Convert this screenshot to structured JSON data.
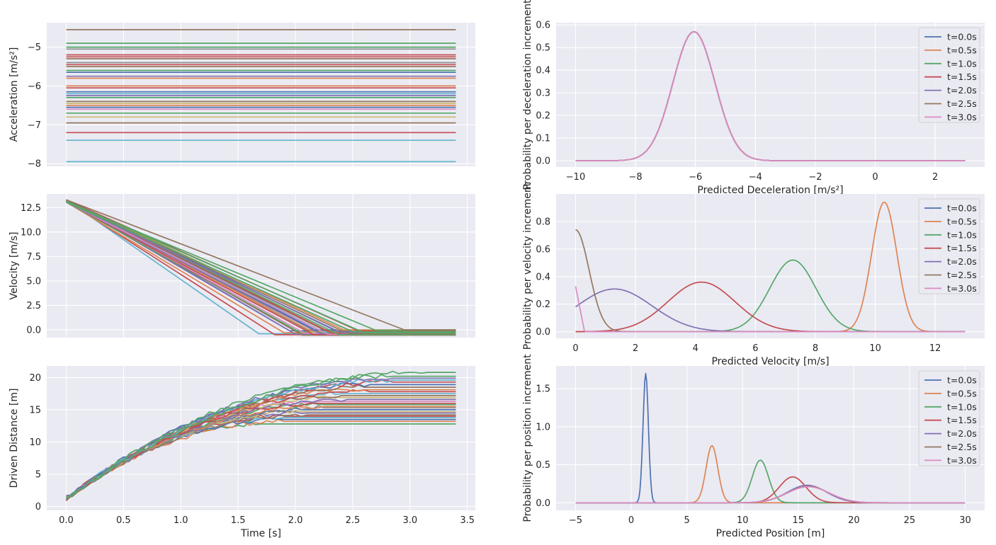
{
  "colors": {
    "background": "#eaeaf2",
    "grid": "#ffffff",
    "palette": [
      "#4c72b0",
      "#dd8452",
      "#55a868",
      "#c44e52",
      "#8172b3",
      "#937860",
      "#da8bc3",
      "#8c8c8c",
      "#ccb974",
      "#64b5cd"
    ]
  },
  "chart_data": [
    {
      "id": "acc",
      "type": "line",
      "title": "",
      "xlabel": "",
      "ylabel": "Acceleration [m/s²]",
      "xlim": [
        -0.17,
        3.57
      ],
      "ylim": [
        -8.07,
        -4.37
      ],
      "xticks": [],
      "yticks": [
        -8,
        -7,
        -6,
        -5
      ],
      "ytick_labels": [
        "−8",
        "−7",
        "−6",
        "−5"
      ],
      "xgrid": [
        0,
        0.5,
        1,
        1.5,
        2,
        2.5,
        3,
        3.5
      ],
      "t_end": 3.4,
      "levels": [
        -4.55,
        -4.9,
        -5.0,
        -5.05,
        -5.2,
        -5.25,
        -5.3,
        -5.4,
        -5.45,
        -5.5,
        -5.6,
        -5.65,
        -5.75,
        -5.8,
        -6.0,
        -6.05,
        -6.15,
        -6.2,
        -6.25,
        -6.3,
        -6.4,
        -6.45,
        -6.5,
        -6.55,
        -6.6,
        -6.7,
        -6.8,
        -6.95,
        -7.2,
        -7.4,
        -7.95
      ],
      "level_colors": [
        5,
        2,
        2,
        7,
        3,
        3,
        5,
        7,
        3,
        5,
        2,
        0,
        4,
        1,
        1,
        3,
        0,
        9,
        4,
        2,
        5,
        8,
        1,
        0,
        6,
        2,
        8,
        5,
        3,
        9,
        9
      ]
    },
    {
      "id": "vel",
      "type": "line",
      "xlabel": "",
      "ylabel": "Velocity [m/s]",
      "xlim": [
        -0.17,
        3.57
      ],
      "ylim": [
        -0.8,
        13.9
      ],
      "xticks": [],
      "yticks": [
        0,
        2.5,
        5,
        7.5,
        10,
        12.5
      ],
      "ytick_labels": [
        "0.0",
        "2.5",
        "5.0",
        "7.5",
        "10.0",
        "12.5"
      ],
      "xgrid": [
        0,
        0.5,
        1,
        1.5,
        2,
        2.5,
        3,
        3.5
      ],
      "t_end": 3.4,
      "v0": 13.3,
      "stop_times": [
        1.68,
        1.82,
        1.9,
        1.95,
        2.0,
        2.03,
        2.06,
        2.08,
        2.1,
        2.12,
        2.14,
        2.16,
        2.18,
        2.2,
        2.22,
        2.24,
        2.26,
        2.28,
        2.3,
        2.32,
        2.34,
        2.36,
        2.38,
        2.4,
        2.43,
        2.46,
        2.5,
        2.55,
        2.6,
        2.7,
        2.95
      ],
      "stop_levels": [
        -0.4,
        -0.5,
        -0.3,
        -0.1,
        -0.45,
        -0.2,
        -0.55,
        -0.35,
        0.0,
        -0.25,
        -0.15,
        -0.5,
        -0.05,
        -0.3,
        -0.4,
        -0.2,
        -0.1,
        -0.45,
        -0.25,
        -0.35,
        0.0,
        -0.15,
        -0.5,
        -0.3,
        -0.05,
        -0.4,
        -0.2,
        -0.1,
        -0.3,
        -0.05,
        0.0
      ],
      "colors_idx": [
        9,
        3,
        1,
        0,
        4,
        2,
        5,
        6,
        7,
        8,
        1,
        3,
        0,
        2,
        4,
        9,
        5,
        6,
        1,
        3,
        8,
        0,
        2,
        4,
        1,
        5,
        2,
        3,
        2,
        2,
        5
      ]
    },
    {
      "id": "dist",
      "type": "line",
      "xlabel": "Time [s]",
      "ylabel": "Driven Distance [m]",
      "xlim": [
        -0.17,
        3.57
      ],
      "ylim": [
        -0.6,
        21.8
      ],
      "xticks": [
        0,
        0.5,
        1,
        1.5,
        2,
        2.5,
        3,
        3.5
      ],
      "xtick_labels": [
        "0.0",
        "0.5",
        "1.0",
        "1.5",
        "2.0",
        "2.5",
        "3.0",
        "3.5"
      ],
      "yticks": [
        0,
        5,
        10,
        15,
        20
      ],
      "ytick_labels": [
        "0",
        "5",
        "10",
        "15",
        "20"
      ],
      "t_end": 3.4,
      "finals": [
        12.8,
        13.2,
        13.5,
        13.8,
        14.0,
        14.2,
        14.5,
        14.7,
        15.0,
        15.3,
        15.5,
        15.8,
        16.0,
        16.3,
        16.6,
        16.9,
        17.2,
        17.5,
        17.8,
        18.1,
        18.5,
        18.9,
        19.3,
        19.6,
        19.9,
        20.2,
        20.8
      ],
      "colors_idx": [
        2,
        1,
        0,
        9,
        3,
        5,
        4,
        8,
        0,
        7,
        1,
        2,
        3,
        6,
        4,
        8,
        5,
        9,
        3,
        1,
        5,
        0,
        3,
        9,
        4,
        2,
        2
      ]
    },
    {
      "id": "pdec",
      "type": "line",
      "xlabel": "Predicted Deceleration [m/s²]",
      "ylabel": "Probability per deceleration increment",
      "xlim": [
        -10.65,
        3.65
      ],
      "ylim": [
        -0.028,
        0.61
      ],
      "xticks": [
        -10,
        -8,
        -6,
        -4,
        -2,
        0,
        2
      ],
      "xtick_labels": [
        "−10",
        "−8",
        "−6",
        "−4",
        "−2",
        "0",
        "2"
      ],
      "yticks": [
        0,
        0.1,
        0.2,
        0.3,
        0.4,
        0.5,
        0.6
      ],
      "ytick_labels": [
        "0.0",
        "0.1",
        "0.2",
        "0.3",
        "0.4",
        "0.5",
        "0.6"
      ],
      "x_range": [
        -10,
        3
      ],
      "series": [
        {
          "name": "t=0.0s",
          "mu": -6.05,
          "sigma": 0.7,
          "peak": 0.57
        },
        {
          "name": "t=0.5s",
          "mu": -6.05,
          "sigma": 0.7,
          "peak": 0.57
        },
        {
          "name": "t=1.0s",
          "mu": -6.05,
          "sigma": 0.7,
          "peak": 0.57
        },
        {
          "name": "t=1.5s",
          "mu": -6.05,
          "sigma": 0.7,
          "peak": 0.57
        },
        {
          "name": "t=2.0s",
          "mu": -6.05,
          "sigma": 0.7,
          "peak": 0.57
        },
        {
          "name": "t=2.5s",
          "mu": -6.05,
          "sigma": 0.7,
          "peak": 0.57
        },
        {
          "name": "t=3.0s",
          "mu": -6.05,
          "sigma": 0.7,
          "peak": 0.57
        }
      ]
    },
    {
      "id": "pvel",
      "type": "line",
      "xlabel": "Predicted Velocity [m/s]",
      "ylabel": "Probability per velocity increment",
      "xlim": [
        -0.65,
        13.65
      ],
      "ylim": [
        -0.048,
        1.0
      ],
      "xticks": [
        0,
        2,
        4,
        6,
        8,
        10,
        12
      ],
      "xtick_labels": [
        "0",
        "2",
        "4",
        "6",
        "8",
        "10",
        "12"
      ],
      "yticks": [
        0,
        0.2,
        0.4,
        0.6,
        0.8
      ],
      "ytick_labels": [
        "0.0",
        "0.2",
        "0.4",
        "0.6",
        "0.8"
      ],
      "x_range": [
        0,
        13
      ],
      "series": [
        {
          "name": "t=0.0s",
          "kind": "none"
        },
        {
          "name": "t=0.5s",
          "kind": "gauss",
          "mu": 10.3,
          "sigma": 0.42,
          "peak": 0.94
        },
        {
          "name": "t=1.0s",
          "kind": "gauss",
          "mu": 7.25,
          "sigma": 0.77,
          "peak": 0.52
        },
        {
          "name": "t=1.5s",
          "kind": "gauss",
          "mu": 4.2,
          "sigma": 1.12,
          "peak": 0.36
        },
        {
          "name": "t=2.0s",
          "kind": "gauss",
          "mu": 1.3,
          "sigma": 1.25,
          "peak": 0.31
        },
        {
          "name": "t=2.5s",
          "kind": "half",
          "peak": 0.74,
          "sigma": 0.45
        },
        {
          "name": "t=3.0s",
          "kind": "spike",
          "peak": 0.33
        }
      ]
    },
    {
      "id": "ppos",
      "type": "line",
      "xlabel": "Predicted Position [m]",
      "ylabel": "Probability per position increment",
      "xlim": [
        -6.75,
        31.75
      ],
      "ylim": [
        -0.1,
        1.8
      ],
      "xticks": [
        -5,
        0,
        5,
        10,
        15,
        20,
        25,
        30
      ],
      "xtick_labels": [
        "−5",
        "0",
        "5",
        "10",
        "15",
        "20",
        "25",
        "30"
      ],
      "yticks": [
        0,
        0.5,
        1.0,
        1.5
      ],
      "ytick_labels": [
        "0.0",
        "0.5",
        "1.0",
        "1.5"
      ],
      "x_range": [
        -5,
        30
      ],
      "series": [
        {
          "name": "t=0.0s",
          "mu": 1.3,
          "sigma": 0.24,
          "peak": 1.7
        },
        {
          "name": "t=0.5s",
          "mu": 7.25,
          "sigma": 0.53,
          "peak": 0.75
        },
        {
          "name": "t=1.0s",
          "mu": 11.6,
          "sigma": 0.73,
          "peak": 0.56
        },
        {
          "name": "t=1.5s",
          "mu": 14.5,
          "sigma": 1.2,
          "peak": 0.34
        },
        {
          "name": "t=2.0s",
          "mu": 15.8,
          "sigma": 1.75,
          "peak": 0.23
        },
        {
          "name": "t=2.5s",
          "mu": 15.9,
          "sigma": 1.85,
          "peak": 0.215
        },
        {
          "name": "t=3.0s",
          "mu": 15.9,
          "sigma": 1.9,
          "peak": 0.21
        }
      ]
    }
  ]
}
